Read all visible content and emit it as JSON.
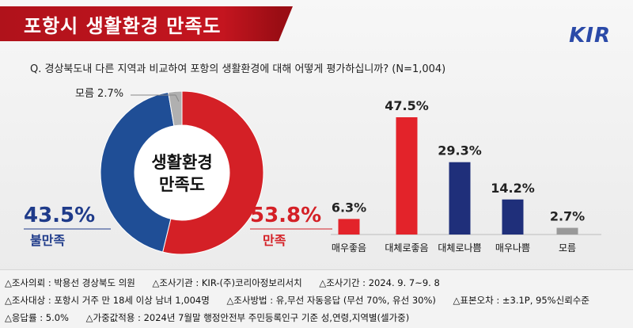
{
  "header": {
    "title": "포항시 생활환경 만족도",
    "logo": "KIR"
  },
  "question": "Q. 경상북도내 다른 지역과 비교하여 포항의 생활환경에 대해 어떻게 평가하십니까? (N=1,004)",
  "colors": {
    "red": "#d42026",
    "navy": "#1f2f7a",
    "gray": "#a0a0a0",
    "blue_ring": "#2a5aa8"
  },
  "chart_data": [
    {
      "type": "pie",
      "center_label": [
        "생활환경",
        "만족도"
      ],
      "slices": [
        {
          "name": "만족",
          "value": 53.8,
          "label": "53.8%",
          "color": "#d42026"
        },
        {
          "name": "불만족",
          "value": 43.5,
          "label": "43.5%",
          "color": "#1f4e96"
        },
        {
          "name": "모름",
          "value": 2.7,
          "label": "모름 2.7%",
          "color": "#b0b0b0"
        }
      ]
    },
    {
      "type": "bar",
      "categories": [
        "매우좋음",
        "대체로좋음",
        "대체로나쁨",
        "매우나쁨",
        "모름"
      ],
      "values": [
        6.3,
        47.5,
        29.3,
        14.2,
        2.7
      ],
      "value_labels": [
        "6.3%",
        "47.5%",
        "29.3%",
        "14.2%",
        "2.7%"
      ],
      "colors": [
        "#e3232a",
        "#e3232a",
        "#1f2f7a",
        "#1f2f7a",
        "#999999"
      ],
      "ylim": [
        0,
        50
      ]
    }
  ],
  "footer": {
    "line1": [
      "△조사의뢰 : 박용선 경상북도 의원",
      "△조사기관 : KIR-(주)코리아정보리서치",
      "△조사기간 : 2024. 9. 7~9. 8"
    ],
    "line2": [
      "△조사대상 : 포항시 거주 만 18세 이상 남녀 1,004명",
      "△조사방법 : 유,무선 자동응답 (무선 70%, 유선 30%)",
      "△표본오차 : ±3.1P, 95%신뢰수준"
    ],
    "line3": [
      "△응답률 : 5.0%",
      "△가중값적용 : 2024년 7월말 행정안전부 주민등록인구 기준 성,연령,지역별(셀가중)"
    ]
  }
}
